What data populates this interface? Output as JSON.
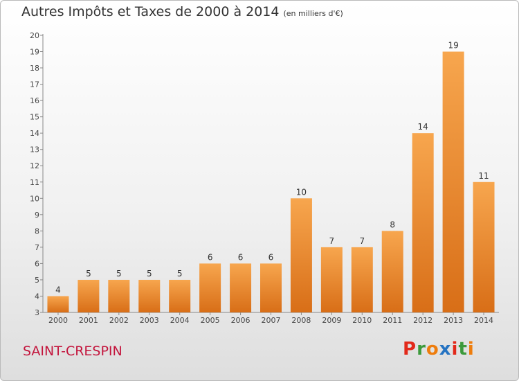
{
  "header": {
    "title": "Autres Impôts et Taxes de 2000 à 2014",
    "unit": "(en milliers d'€)"
  },
  "footer": {
    "commune": "SAINT-CRESPIN",
    "brand": "Proxiti"
  },
  "colors": {
    "bar_top": "#f7a64e",
    "bar_bottom": "#d86e17",
    "brand_letters": [
      "#e2291a",
      "#3c9a3c",
      "#ee7d0d",
      "#2573c2",
      "#e2291a",
      "#3c9a3c",
      "#ee7d0d"
    ]
  },
  "chart_data": {
    "type": "bar",
    "title": "Autres Impôts et Taxes de 2000 à 2014",
    "categories": [
      "2000",
      "2001",
      "2002",
      "2003",
      "2004",
      "2005",
      "2006",
      "2007",
      "2008",
      "2009",
      "2010",
      "2011",
      "2012",
      "2013",
      "2014"
    ],
    "values": [
      4,
      5,
      5,
      5,
      5,
      6,
      6,
      6,
      10,
      7,
      7,
      8,
      14,
      19,
      11
    ],
    "xlabel": "",
    "ylabel": "",
    "ylim": [
      3,
      20
    ],
    "yticks": [
      3,
      4,
      5,
      6,
      7,
      8,
      9,
      10,
      11,
      12,
      13,
      14,
      15,
      16,
      17,
      18,
      19,
      20
    ],
    "grid": false,
    "legend": "none"
  }
}
